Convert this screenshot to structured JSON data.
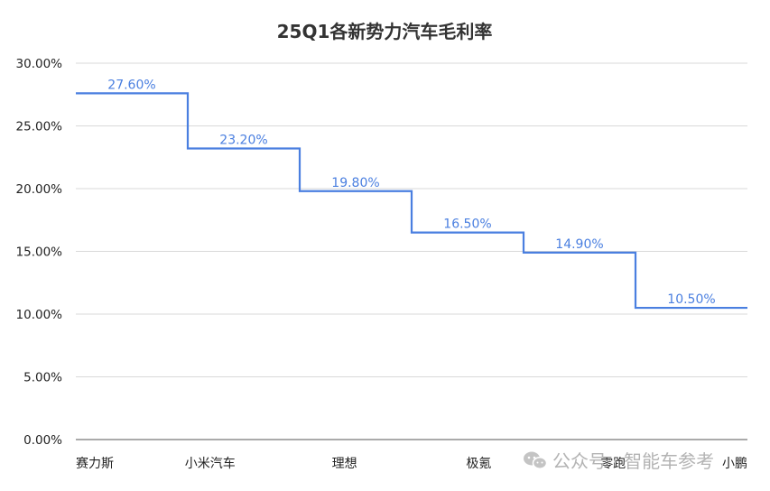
{
  "chart_data": {
    "type": "line",
    "step": true,
    "title": "25Q1各新势力汽车毛利率",
    "categories": [
      "赛力斯",
      "小米汽车",
      "理想",
      "极氪",
      "零跑",
      "小鹏"
    ],
    "values": [
      27.6,
      23.2,
      19.8,
      16.5,
      14.9,
      10.5
    ],
    "data_labels": [
      "27.60%",
      "23.20%",
      "19.80%",
      "16.50%",
      "14.90%",
      "10.50%"
    ],
    "yticks": [
      "0.00%",
      "5.00%",
      "10.00%",
      "15.00%",
      "20.00%",
      "25.00%",
      "30.00%"
    ],
    "ylim": [
      0,
      30
    ],
    "grid": true,
    "legend": "none",
    "line_color": "#4a7fe0"
  },
  "watermark": {
    "icon": "wechat-icon",
    "text": "公众号 · 智能车参考"
  }
}
